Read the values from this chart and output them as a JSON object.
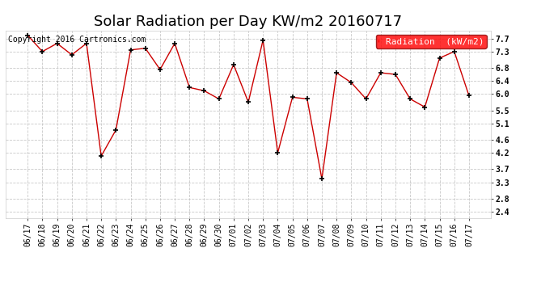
{
  "title": "Solar Radiation per Day KW/m2 20160717",
  "copyright": "Copyright 2016 Cartronics.com",
  "legend_label": "Radiation  (kW/m2)",
  "dates": [
    "06/17",
    "06/18",
    "06/19",
    "06/20",
    "06/21",
    "06/22",
    "06/23",
    "06/24",
    "06/25",
    "06/26",
    "06/27",
    "06/28",
    "06/29",
    "06/30",
    "07/01",
    "07/02",
    "07/03",
    "07/04",
    "07/05",
    "07/06",
    "07/07",
    "07/08",
    "07/09",
    "07/10",
    "07/11",
    "07/12",
    "07/13",
    "07/14",
    "07/15",
    "07/16",
    "07/17"
  ],
  "values": [
    7.8,
    7.3,
    7.55,
    7.2,
    7.55,
    4.1,
    4.9,
    7.35,
    7.4,
    6.75,
    7.55,
    6.2,
    6.1,
    5.85,
    6.9,
    5.75,
    7.65,
    4.2,
    5.9,
    5.85,
    3.4,
    6.65,
    6.35,
    5.85,
    6.65,
    6.6,
    5.85,
    5.6,
    7.1,
    7.3,
    5.95
  ],
  "line_color": "#cc0000",
  "marker_color": "#000000",
  "bg_color": "#ffffff",
  "plot_bg_color": "#ffffff",
  "grid_color": "#bbbbbb",
  "ylim_min": 2.2,
  "ylim_max": 7.95,
  "yticks": [
    2.4,
    2.8,
    3.3,
    3.7,
    4.2,
    4.6,
    5.1,
    5.5,
    6.0,
    6.4,
    6.8,
    7.3,
    7.7
  ],
  "title_fontsize": 13,
  "tick_fontsize": 7,
  "legend_fontsize": 8,
  "copyright_fontsize": 7
}
